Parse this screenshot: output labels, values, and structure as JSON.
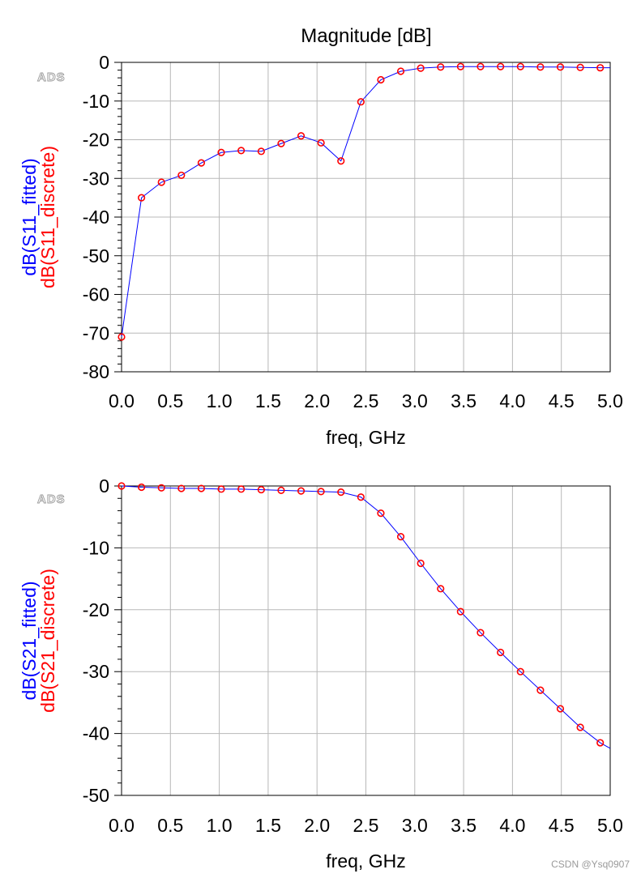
{
  "figure": {
    "watermark": "CSDN @Ysq0907",
    "colors": {
      "fitted": "#0000ff",
      "discrete": "#ff0000",
      "grid": "#b8b8b8",
      "axis": "#000000"
    }
  },
  "chart_data": [
    {
      "type": "line",
      "title": "Magnitude [dB]",
      "badge": "ADS",
      "xlabel": "freq, GHz",
      "ylabel_lines": [
        "dB(S11_fitted)",
        "dB(S11_discrete)"
      ],
      "xlim": [
        0.0,
        5.0
      ],
      "ylim": [
        -80,
        0
      ],
      "xticks": [
        "0.0",
        "0.5",
        "1.0",
        "1.5",
        "2.0",
        "2.5",
        "3.0",
        "3.5",
        "4.0",
        "4.5",
        "5.0"
      ],
      "yticks": [
        "0",
        "-10",
        "-20",
        "-30",
        "-40",
        "-50",
        "-60",
        "-70",
        "-80"
      ],
      "grid": true,
      "x": [
        0.0,
        0.204,
        0.408,
        0.612,
        0.816,
        1.02,
        1.224,
        1.429,
        1.633,
        1.837,
        2.041,
        2.245,
        2.449,
        2.653,
        2.857,
        3.061,
        3.265,
        3.469,
        3.673,
        3.878,
        4.082,
        4.286,
        4.49,
        4.694,
        4.898
      ],
      "series": [
        {
          "name": "dB(S11_fitted)",
          "style": "line",
          "color": "#0000ff",
          "values": [
            -71,
            -35,
            -31,
            -29.2,
            -26,
            -23.3,
            -22.8,
            -23,
            -21,
            -19,
            -20.8,
            -25.5,
            -10.2,
            -4.5,
            -2.3,
            -1.5,
            -1.2,
            -1.1,
            -1.1,
            -1.1,
            -1.1,
            -1.2,
            -1.2,
            -1.3,
            -1.4
          ],
          "end_value": -1.4
        },
        {
          "name": "dB(S11_discrete)",
          "style": "markers",
          "color": "#ff0000",
          "values": [
            -71,
            -35,
            -31,
            -29.2,
            -26,
            -23.3,
            -22.8,
            -23,
            -21,
            -19,
            -20.8,
            -25.5,
            -10.2,
            -4.5,
            -2.3,
            -1.5,
            -1.2,
            -1.1,
            -1.1,
            -1.1,
            -1.1,
            -1.2,
            -1.2,
            -1.3,
            -1.4
          ]
        }
      ]
    },
    {
      "type": "line",
      "title": "",
      "badge": "ADS",
      "xlabel": "freq, GHz",
      "ylabel_lines": [
        "dB(S21_fitted)",
        "dB(S21_discrete)"
      ],
      "xlim": [
        0.0,
        5.0
      ],
      "ylim": [
        -50,
        0
      ],
      "xticks": [
        "0.0",
        "0.5",
        "1.0",
        "1.5",
        "2.0",
        "2.5",
        "3.0",
        "3.5",
        "4.0",
        "4.5",
        "5.0"
      ],
      "yticks": [
        "0",
        "-10",
        "-20",
        "-30",
        "-40",
        "-50"
      ],
      "grid": true,
      "x": [
        0.0,
        0.204,
        0.408,
        0.612,
        0.816,
        1.02,
        1.224,
        1.429,
        1.633,
        1.837,
        2.041,
        2.245,
        2.449,
        2.653,
        2.857,
        3.061,
        3.265,
        3.469,
        3.673,
        3.878,
        4.082,
        4.286,
        4.49,
        4.694,
        4.898
      ],
      "series": [
        {
          "name": "dB(S21_fitted)",
          "style": "line",
          "color": "#0000ff",
          "values": [
            0,
            -0.2,
            -0.3,
            -0.4,
            -0.4,
            -0.5,
            -0.5,
            -0.6,
            -0.7,
            -0.8,
            -0.9,
            -1.0,
            -1.8,
            -4.4,
            -8.2,
            -12.5,
            -16.6,
            -20.3,
            -23.7,
            -26.9,
            -30.0,
            -33.0,
            -36.0,
            -39.0,
            -41.5
          ],
          "end_value": -42.4
        },
        {
          "name": "dB(S21_discrete)",
          "style": "markers",
          "color": "#ff0000",
          "values": [
            0,
            -0.2,
            -0.3,
            -0.4,
            -0.4,
            -0.5,
            -0.5,
            -0.6,
            -0.7,
            -0.8,
            -0.9,
            -1.0,
            -1.8,
            -4.4,
            -8.2,
            -12.5,
            -16.6,
            -20.3,
            -23.7,
            -26.9,
            -30.0,
            -33.0,
            -36.0,
            -39.0,
            -41.5
          ]
        }
      ]
    }
  ]
}
